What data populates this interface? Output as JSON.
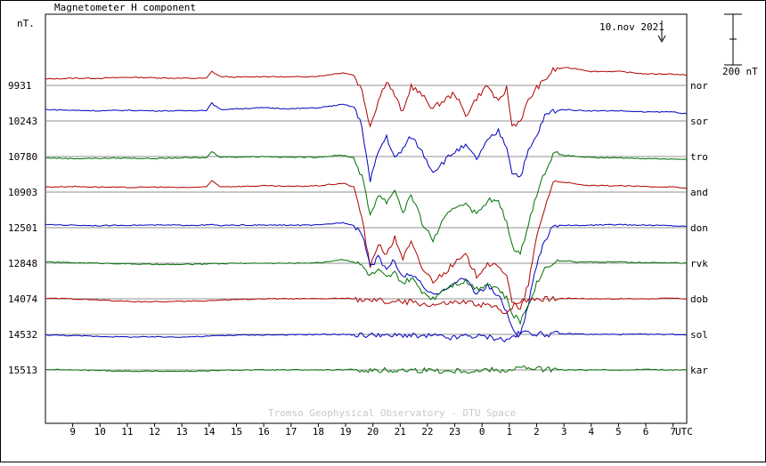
{
  "chart_data": {
    "type": "line",
    "title": "Magnetometer H component",
    "unit_label": "nT.",
    "date_label": "10.nov 2021",
    "scale_bar_label": "200 nT",
    "x_axis_label": "UTC",
    "x_tick_labels": [
      "9",
      "10",
      "11",
      "12",
      "13",
      "14",
      "15",
      "16",
      "17",
      "18",
      "19",
      "20",
      "21",
      "22",
      "23",
      "0",
      "1",
      "2",
      "3",
      "4",
      "5",
      "6",
      "7"
    ],
    "x_range_hours": [
      8.0,
      31.5
    ],
    "scale_bar_nt": 200,
    "watermark": "Tromso Geophysical Observatory - DTU Space",
    "colors": {
      "red": "#b00000",
      "blue": "#0000c0",
      "green": "#007000",
      "baseline": "#909090"
    },
    "series": [
      {
        "name": "nor",
        "baseline_nt": 9931,
        "color": "red",
        "hours": [
          8.0,
          9,
          10,
          11,
          12,
          13,
          13.9,
          14.1,
          14.4,
          15,
          16,
          17,
          18,
          18.9,
          19.3,
          19.6,
          19.9,
          20.2,
          20.5,
          20.8,
          21.1,
          21.4,
          21.8,
          22.2,
          22.6,
          23.0,
          23.4,
          23.8,
          24.2,
          24.6,
          24.9,
          25.1,
          25.4,
          25.7,
          26.0,
          26.3,
          26.6,
          27.0,
          27.5,
          28,
          29,
          30,
          31,
          31.5
        ],
        "delta_nt": [
          25,
          28,
          28,
          32,
          30,
          28,
          28,
          55,
          35,
          32,
          35,
          33,
          36,
          50,
          40,
          -20,
          -160,
          -60,
          20,
          -40,
          -110,
          0,
          -40,
          -90,
          -60,
          -30,
          -120,
          -50,
          0,
          -70,
          -10,
          -160,
          -140,
          -60,
          -10,
          20,
          60,
          70,
          65,
          55,
          55,
          45,
          45,
          40
        ]
      },
      {
        "name": "sor",
        "baseline_nt": 10243,
        "color": "blue",
        "hours": [
          8.0,
          9,
          10,
          11,
          12,
          13,
          13.9,
          14.1,
          14.4,
          15,
          16,
          17,
          18,
          18.9,
          19.3,
          19.6,
          19.9,
          20.2,
          20.5,
          20.8,
          21.1,
          21.4,
          21.8,
          22.2,
          22.6,
          23.0,
          23.4,
          23.8,
          24.2,
          24.6,
          24.9,
          25.1,
          25.4,
          25.7,
          26.0,
          26.3,
          26.6,
          27.0,
          27.5,
          28,
          29,
          30,
          31,
          31.5
        ],
        "delta_nt": [
          45,
          42,
          40,
          42,
          40,
          40,
          42,
          70,
          45,
          48,
          52,
          48,
          52,
          65,
          55,
          -20,
          -240,
          -120,
          -60,
          -150,
          -110,
          -60,
          -120,
          -200,
          -160,
          -120,
          -100,
          -150,
          -80,
          -40,
          -100,
          -200,
          -220,
          -120,
          -60,
          20,
          40,
          45,
          42,
          40,
          40,
          35,
          36,
          28
        ]
      },
      {
        "name": "tro",
        "baseline_nt": 10780,
        "color": "green",
        "hours": [
          8.0,
          9,
          10,
          11,
          12,
          13,
          13.9,
          14.1,
          14.4,
          15,
          16,
          17,
          18,
          18.9,
          19.3,
          19.6,
          19.9,
          20.2,
          20.5,
          20.8,
          21.1,
          21.4,
          21.8,
          22.2,
          22.6,
          23.0,
          23.4,
          23.8,
          24.2,
          24.6,
          24.9,
          25.1,
          25.4,
          25.7,
          26.0,
          26.3,
          26.6,
          27.0,
          27.5,
          28,
          29,
          30,
          31,
          31.5
        ],
        "delta_nt": [
          -5,
          -8,
          -7,
          -6,
          -8,
          -5,
          -5,
          20,
          -2,
          -2,
          0,
          -3,
          -2,
          5,
          -5,
          -80,
          -230,
          -150,
          -180,
          -130,
          -220,
          -150,
          -260,
          -330,
          -250,
          -200,
          -180,
          -230,
          -170,
          -180,
          -260,
          -350,
          -390,
          -260,
          -150,
          -60,
          10,
          5,
          0,
          -5,
          -5,
          -8,
          -10,
          -10
        ]
      },
      {
        "name": "and",
        "baseline_nt": 10903,
        "color": "red",
        "hours": [
          8.0,
          9,
          10,
          11,
          12,
          13,
          13.9,
          14.1,
          14.4,
          15,
          16,
          17,
          18,
          18.9,
          19.3,
          19.6,
          19.9,
          20.2,
          20.5,
          20.8,
          21.1,
          21.4,
          21.8,
          22.2,
          22.6,
          23.0,
          23.4,
          23.8,
          24.2,
          24.6,
          24.9,
          25.1,
          25.4,
          25.7,
          26.0,
          26.3,
          26.6,
          27.0,
          27.5,
          28,
          29,
          30,
          31,
          31.5
        ],
        "delta_nt": [
          20,
          22,
          20,
          18,
          20,
          18,
          20,
          45,
          22,
          22,
          25,
          22,
          25,
          35,
          20,
          -100,
          -300,
          -200,
          -250,
          -180,
          -260,
          -200,
          -300,
          -350,
          -320,
          -280,
          -250,
          -330,
          -280,
          -300,
          -320,
          -430,
          -470,
          -360,
          -180,
          -60,
          40,
          40,
          30,
          25,
          25,
          22,
          20,
          15
        ]
      },
      {
        "name": "don",
        "baseline_nt": 12501,
        "color": "blue",
        "hours": [
          8.0,
          9,
          10,
          11,
          12,
          13,
          13.9,
          14.1,
          14.4,
          15,
          16,
          17,
          18,
          18.9,
          19.3,
          19.6,
          19.9,
          20.2,
          20.5,
          20.8,
          21.1,
          21.4,
          21.8,
          22.2,
          22.6,
          23.0,
          23.4,
          23.8,
          24.2,
          24.6,
          24.9,
          25.1,
          25.4,
          25.7,
          26.0,
          26.3,
          26.6,
          27.0,
          27.5,
          28,
          29,
          30,
          31,
          31.5
        ],
        "delta_nt": [
          12,
          10,
          8,
          10,
          10,
          10,
          10,
          12,
          8,
          10,
          10,
          10,
          10,
          20,
          10,
          -20,
          -150,
          -120,
          -160,
          -130,
          -200,
          -180,
          -230,
          -270,
          -240,
          -220,
          -200,
          -260,
          -230,
          -270,
          -330,
          -400,
          -430,
          -300,
          -150,
          -50,
          10,
          10,
          8,
          10,
          12,
          10,
          8,
          5
        ]
      },
      {
        "name": "rvk",
        "baseline_nt": 12848,
        "color": "green",
        "hours": [
          8.0,
          9,
          10,
          11,
          12,
          13,
          13.9,
          14.1,
          14.4,
          15,
          16,
          17,
          18,
          18.9,
          19.3,
          19.6,
          19.9,
          20.2,
          20.5,
          20.8,
          21.1,
          21.4,
          21.8,
          22.2,
          22.6,
          23.0,
          23.4,
          23.8,
          24.2,
          24.6,
          24.9,
          25.1,
          25.4,
          25.7,
          26.0,
          26.3,
          26.6,
          27.0,
          27.5,
          28,
          29,
          30,
          31,
          31.5
        ],
        "delta_nt": [
          5,
          2,
          0,
          -2,
          -5,
          -5,
          -3,
          0,
          -2,
          0,
          0,
          0,
          2,
          15,
          5,
          -10,
          -50,
          -30,
          -60,
          -40,
          -80,
          -60,
          -110,
          -140,
          -100,
          -80,
          -70,
          -100,
          -80,
          -100,
          -140,
          -200,
          -230,
          -160,
          -80,
          -20,
          5,
          10,
          5,
          5,
          5,
          2,
          2,
          0
        ]
      },
      {
        "name": "dob",
        "baseline_nt": 14074,
        "color": "red",
        "hours": [
          8.0,
          9,
          10,
          11,
          12,
          13,
          13.9,
          14.1,
          14.4,
          15,
          16,
          17,
          18,
          18.9,
          19.3,
          19.6,
          19.9,
          20.2,
          20.5,
          20.8,
          21.1,
          21.4,
          21.8,
          22.2,
          22.6,
          23.0,
          23.4,
          23.8,
          24.2,
          24.6,
          24.9,
          25.1,
          25.4,
          25.7,
          26.0,
          26.3,
          26.6,
          27.0,
          27.5,
          28,
          29,
          30,
          31,
          31.5
        ],
        "delta_nt": [
          2,
          0,
          -5,
          -10,
          -12,
          -10,
          -8,
          -6,
          -5,
          -3,
          0,
          0,
          0,
          2,
          0,
          -5,
          -10,
          -5,
          -15,
          -10,
          -15,
          -12,
          -20,
          -25,
          -20,
          -15,
          -15,
          -20,
          -25,
          -40,
          -55,
          -30,
          -10,
          0,
          2,
          0,
          0,
          2,
          2,
          0,
          0,
          0,
          2,
          0
        ]
      },
      {
        "name": "sol",
        "baseline_nt": 14532,
        "color": "blue",
        "hours": [
          8.0,
          9,
          10,
          11,
          12,
          13,
          13.9,
          14.1,
          14.4,
          15,
          16,
          17,
          18,
          18.9,
          19.3,
          19.6,
          19.9,
          20.2,
          20.5,
          20.8,
          21.1,
          21.4,
          21.8,
          22.2,
          22.6,
          23.0,
          23.4,
          23.8,
          24.2,
          24.6,
          24.9,
          25.1,
          25.4,
          25.7,
          26.0,
          26.3,
          26.6,
          27.0,
          27.5,
          28,
          29,
          30,
          31,
          31.5
        ],
        "delta_nt": [
          -2,
          -5,
          -8,
          -10,
          -10,
          -10,
          -8,
          -6,
          -5,
          -3,
          -2,
          -2,
          0,
          0,
          -2,
          -3,
          -5,
          2,
          -8,
          -5,
          -2,
          -5,
          -10,
          -5,
          -12,
          -15,
          -5,
          -8,
          -10,
          -15,
          -25,
          -10,
          5,
          10,
          2,
          0,
          2,
          2,
          2,
          0,
          0,
          0,
          0,
          -2
        ]
      },
      {
        "name": "kar",
        "baseline_nt": 15513,
        "color": "green",
        "hours": [
          8.0,
          9,
          10,
          11,
          12,
          13,
          13.9,
          14.1,
          14.4,
          15,
          16,
          17,
          18,
          18.9,
          19.3,
          19.6,
          19.9,
          20.2,
          20.5,
          20.8,
          21.1,
          21.4,
          21.8,
          22.2,
          22.6,
          23.0,
          23.4,
          23.8,
          24.2,
          24.6,
          24.9,
          25.1,
          25.4,
          25.7,
          26.0,
          26.3,
          26.6,
          27.0,
          27.5,
          28,
          29,
          30,
          31,
          31.5
        ],
        "delta_nt": [
          2,
          0,
          -2,
          -5,
          -5,
          -5,
          -4,
          -3,
          -2,
          0,
          0,
          0,
          0,
          0,
          2,
          0,
          -2,
          -5,
          0,
          -3,
          -2,
          0,
          -2,
          0,
          -5,
          -3,
          -2,
          -5,
          2,
          0,
          -2,
          5,
          10,
          5,
          5,
          2,
          2,
          0,
          0,
          0,
          0,
          2,
          0,
          0
        ]
      }
    ]
  }
}
